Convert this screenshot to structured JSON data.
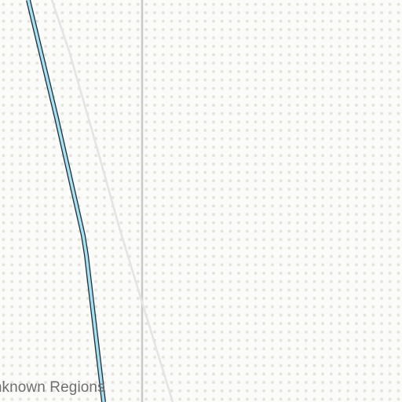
{
  "map": {
    "region_label": "Unknown Regions",
    "colors": {
      "background": "#fbfbf9",
      "dots": "#e3e3da",
      "boundary": "#c9c9c9",
      "road": "#e6e6e6",
      "river_fill": "#a6e1f2",
      "river_outline": "#1f2f3a",
      "label": "#6f6f6f"
    }
  }
}
